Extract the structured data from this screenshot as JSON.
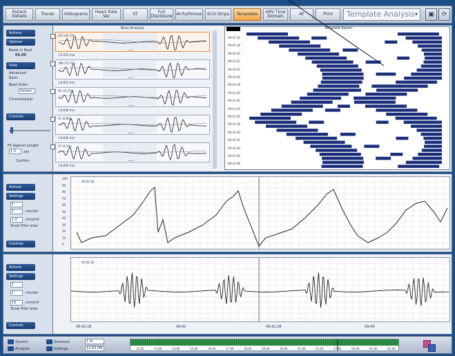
{
  "toolbar": {
    "buttons": [
      {
        "id": "patient-details",
        "label": "Patient Details"
      },
      {
        "id": "trends",
        "label": "Trends"
      },
      {
        "id": "histograms",
        "label": "Histograms"
      },
      {
        "id": "heart-rate-var",
        "label": "Heart Rate Var"
      },
      {
        "id": "st",
        "label": "ST"
      },
      {
        "id": "full-disclosure",
        "label": "Full Disclosure"
      },
      {
        "id": "arrhythmias",
        "label": "Arrhythmias"
      },
      {
        "id": "ecg-strips",
        "label": "ECG Strips"
      },
      {
        "id": "templates",
        "label": "Templates",
        "active": true
      },
      {
        "id": "hrv-time-domain",
        "label": "HRV Time Domain"
      },
      {
        "id": "af",
        "label": "AF"
      },
      {
        "id": "print",
        "label": "Print"
      }
    ],
    "view_select": "Template Analysis"
  },
  "left_panel": {
    "buttons": [
      "Actions",
      "Options",
      "View",
      "Controls"
    ],
    "count_label": "Beats in Beat",
    "count_value": "65.00",
    "view_items": [
      "Advanced",
      "Basic",
      "Beat Order",
      "Chronological"
    ],
    "sort_value": "Sorted",
    "length_label": "Fit Against Length",
    "length_value": "1.0",
    "length_unit": "sec",
    "apply_label": "Confirm"
  },
  "templates_panel": {
    "title": "Beat Analysis",
    "items": [
      {
        "num": "1",
        "count": "255 (42.1%)",
        "time": "1:4:053 min"
      },
      {
        "num": "2",
        "count": "188 (31.1%)",
        "time": "1:4:051 min"
      },
      {
        "num": "3",
        "count": "94 (15.5%)",
        "time": "1:4:048 min"
      },
      {
        "num": "4",
        "count": "41 (6.8%)",
        "time": "1:4:045 min"
      },
      {
        "num": "5",
        "count": "27 (4.5%)",
        "time": "1:4:043 min"
      }
    ],
    "waveform_label": "Beat"
  },
  "raster_panel": {
    "title": "Template Raster",
    "row_labels": [
      "09:41:16",
      "09:41:18",
      "09:41:20",
      "09:41:22",
      "09:41:24",
      "09:41:26",
      "09:41:28",
      "09:41:30",
      "09:41:32",
      "09:41:34",
      "09:41:36",
      "09:41:38",
      "09:41:40",
      "09:41:42",
      "09:41:44",
      "09:41:46",
      "09:41:48"
    ]
  },
  "trend_panel": {
    "buttons": [
      "Actions",
      "Settings",
      "Controls"
    ],
    "scale_value": "1",
    "scale_unit": "min/div",
    "gain_value": "1.0",
    "gain_unit": "mm/mV",
    "show_label": "Show filter area",
    "timestamp": "09:42:18",
    "y_ticks": [
      "100",
      "90",
      "80",
      "70",
      "60",
      "50",
      "40",
      "30",
      "20",
      "10",
      "0"
    ]
  },
  "ecg_panel": {
    "buttons": [
      "Actions",
      "Settings",
      "Controls"
    ],
    "scale_value": "1",
    "scale_unit": "min/div",
    "gain_value": "10",
    "gain_unit": "mm/mV",
    "show_label": "Show filter area",
    "timestamp": "09:42:18",
    "x_ticks": [
      "09:42:18",
      "09:42",
      "09:42:28",
      "09:43"
    ]
  },
  "bottom": {
    "buttons": [
      "Zoomin",
      "Analysis",
      "Zoomout",
      "Settings"
    ],
    "zoom_label": "1 hr",
    "zoom_value": "12:00 PM",
    "timeline_ticks": [
      "12:00",
      "13:00",
      "14:00",
      "15:00",
      "16:00",
      "17:00",
      "18:00",
      "19:00",
      "20:00",
      "21:00",
      "22:00",
      "23:00",
      "00:00",
      "01:00",
      "02:00"
    ]
  },
  "colors": {
    "accent": "#f2a64a",
    "window": "#1c4e86",
    "raster": "#1a2d7a"
  }
}
